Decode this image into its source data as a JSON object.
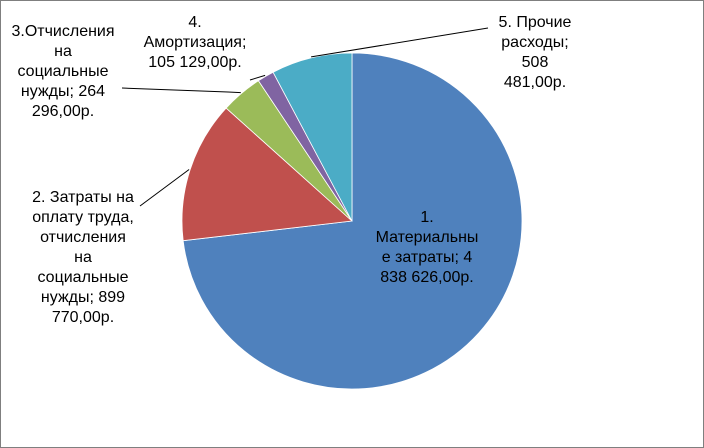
{
  "chart_data": {
    "type": "pie",
    "start": "12 o'clock",
    "direction": "clockwise",
    "slices": [
      {
        "name": "1. Материальные затраты",
        "value": 4838626.0,
        "color": "#4F81BD"
      },
      {
        "name": "2. Затраты на оплату труда, отчисления на социальные нужды",
        "value": 899770.0,
        "color": "#C0504D"
      },
      {
        "name": "3.Отчисления на социальные нужды",
        "value": 264296.0,
        "color": "#9BBB59"
      },
      {
        "name": "4. Амортизация",
        "value": 105129.0,
        "color": "#8064A2"
      },
      {
        "name": "5. Прочие расходы",
        "value": 508481.0,
        "color": "#4BACC6"
      }
    ],
    "labels": [
      "1.\nМатериальны\nе затраты; 4\n838 626,00р.",
      "2. Затраты на\nоплату труда,\nотчисления\nна\nсоциальные\nнужды; 899\n770,00р.",
      "3.Отчисления\nна\nсоциальные\nнужды; 264\n296,00р.",
      "4.\nАмортизация;\n105 129,00р.",
      "5. Прочие\nрасходы;\n508\n481,00р."
    ],
    "legend": "none"
  }
}
